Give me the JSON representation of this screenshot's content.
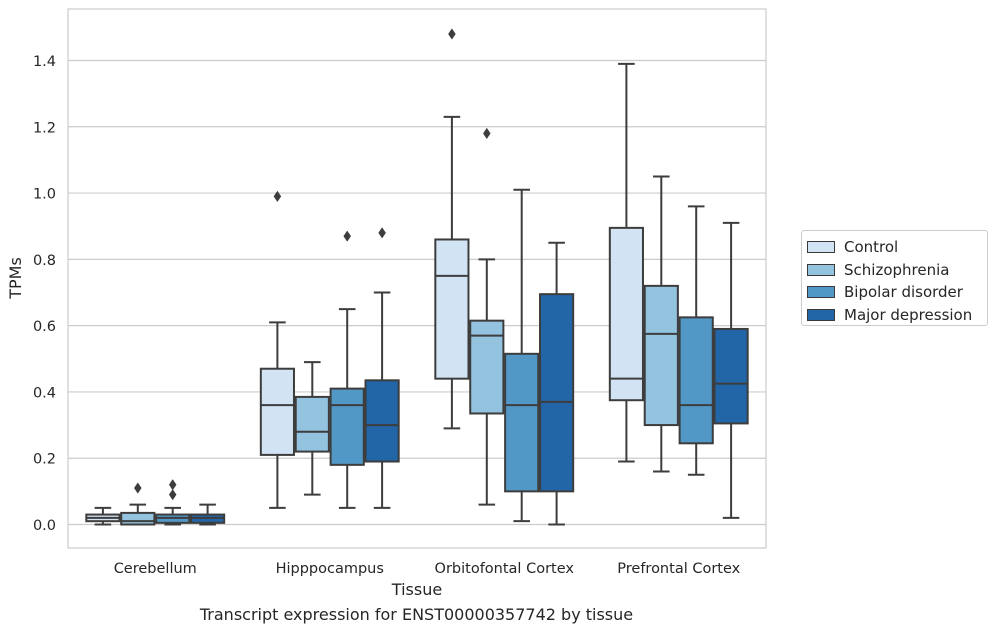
{
  "caption": "Transcript expression for ENST00000357742 by tissue",
  "chart_data": {
    "type": "box",
    "xlabel": "Tissue",
    "ylabel": "TPMs",
    "ylim": [
      -0.07,
      1.56
    ],
    "yticks": [
      "0.0",
      "0.2",
      "0.4",
      "0.6",
      "0.8",
      "1.0",
      "1.2",
      "1.4"
    ],
    "categories": [
      "Cerebellum",
      "Hipppocampus",
      "Orbitofontal Cortex",
      "Prefrontal Cortex"
    ],
    "grid": "horizontal",
    "legend_position": "right",
    "series": [
      {
        "name": "Control",
        "color": "#d2e3f3",
        "boxes": [
          {
            "whislo": 0.0,
            "q1": 0.01,
            "med": 0.02,
            "q3": 0.03,
            "whishi": 0.05,
            "fliers": []
          },
          {
            "whislo": 0.05,
            "q1": 0.21,
            "med": 0.36,
            "q3": 0.47,
            "whishi": 0.61,
            "fliers": [
              0.99
            ]
          },
          {
            "whislo": 0.29,
            "q1": 0.44,
            "med": 0.75,
            "q3": 0.86,
            "whishi": 1.23,
            "fliers": [
              1.48
            ]
          },
          {
            "whislo": 0.19,
            "q1": 0.375,
            "med": 0.44,
            "q3": 0.895,
            "whishi": 1.39,
            "fliers": []
          }
        ]
      },
      {
        "name": "Schizophrenia",
        "color": "#93c3df",
        "boxes": [
          {
            "whislo": 0.0,
            "q1": 0.0,
            "med": 0.01,
            "q3": 0.035,
            "whishi": 0.06,
            "fliers": [
              0.11
            ]
          },
          {
            "whislo": 0.09,
            "q1": 0.22,
            "med": 0.28,
            "q3": 0.385,
            "whishi": 0.49,
            "fliers": []
          },
          {
            "whislo": 0.06,
            "q1": 0.335,
            "med": 0.57,
            "q3": 0.615,
            "whishi": 0.8,
            "fliers": [
              1.18
            ]
          },
          {
            "whislo": 0.16,
            "q1": 0.3,
            "med": 0.575,
            "q3": 0.72,
            "whishi": 1.05,
            "fliers": []
          }
        ]
      },
      {
        "name": "Bipolar disorder",
        "color": "#5298c7",
        "boxes": [
          {
            "whislo": 0.0,
            "q1": 0.005,
            "med": 0.02,
            "q3": 0.03,
            "whishi": 0.05,
            "fliers": [
              0.09,
              0.12
            ]
          },
          {
            "whislo": 0.05,
            "q1": 0.18,
            "med": 0.36,
            "q3": 0.41,
            "whishi": 0.65,
            "fliers": [
              0.87
            ]
          },
          {
            "whislo": 0.01,
            "q1": 0.1,
            "med": 0.36,
            "q3": 0.515,
            "whishi": 1.01,
            "fliers": []
          },
          {
            "whislo": 0.15,
            "q1": 0.245,
            "med": 0.36,
            "q3": 0.625,
            "whishi": 0.96,
            "fliers": []
          }
        ]
      },
      {
        "name": "Major depression",
        "color": "#2266a8",
        "boxes": [
          {
            "whislo": 0.0,
            "q1": 0.005,
            "med": 0.02,
            "q3": 0.03,
            "whishi": 0.06,
            "fliers": []
          },
          {
            "whislo": 0.05,
            "q1": 0.19,
            "med": 0.3,
            "q3": 0.435,
            "whishi": 0.7,
            "fliers": [
              0.88
            ]
          },
          {
            "whislo": 0.0,
            "q1": 0.1,
            "med": 0.37,
            "q3": 0.695,
            "whishi": 0.85,
            "fliers": []
          },
          {
            "whislo": 0.02,
            "q1": 0.305,
            "med": 0.425,
            "q3": 0.59,
            "whishi": 0.91,
            "fliers": []
          }
        ]
      }
    ]
  }
}
